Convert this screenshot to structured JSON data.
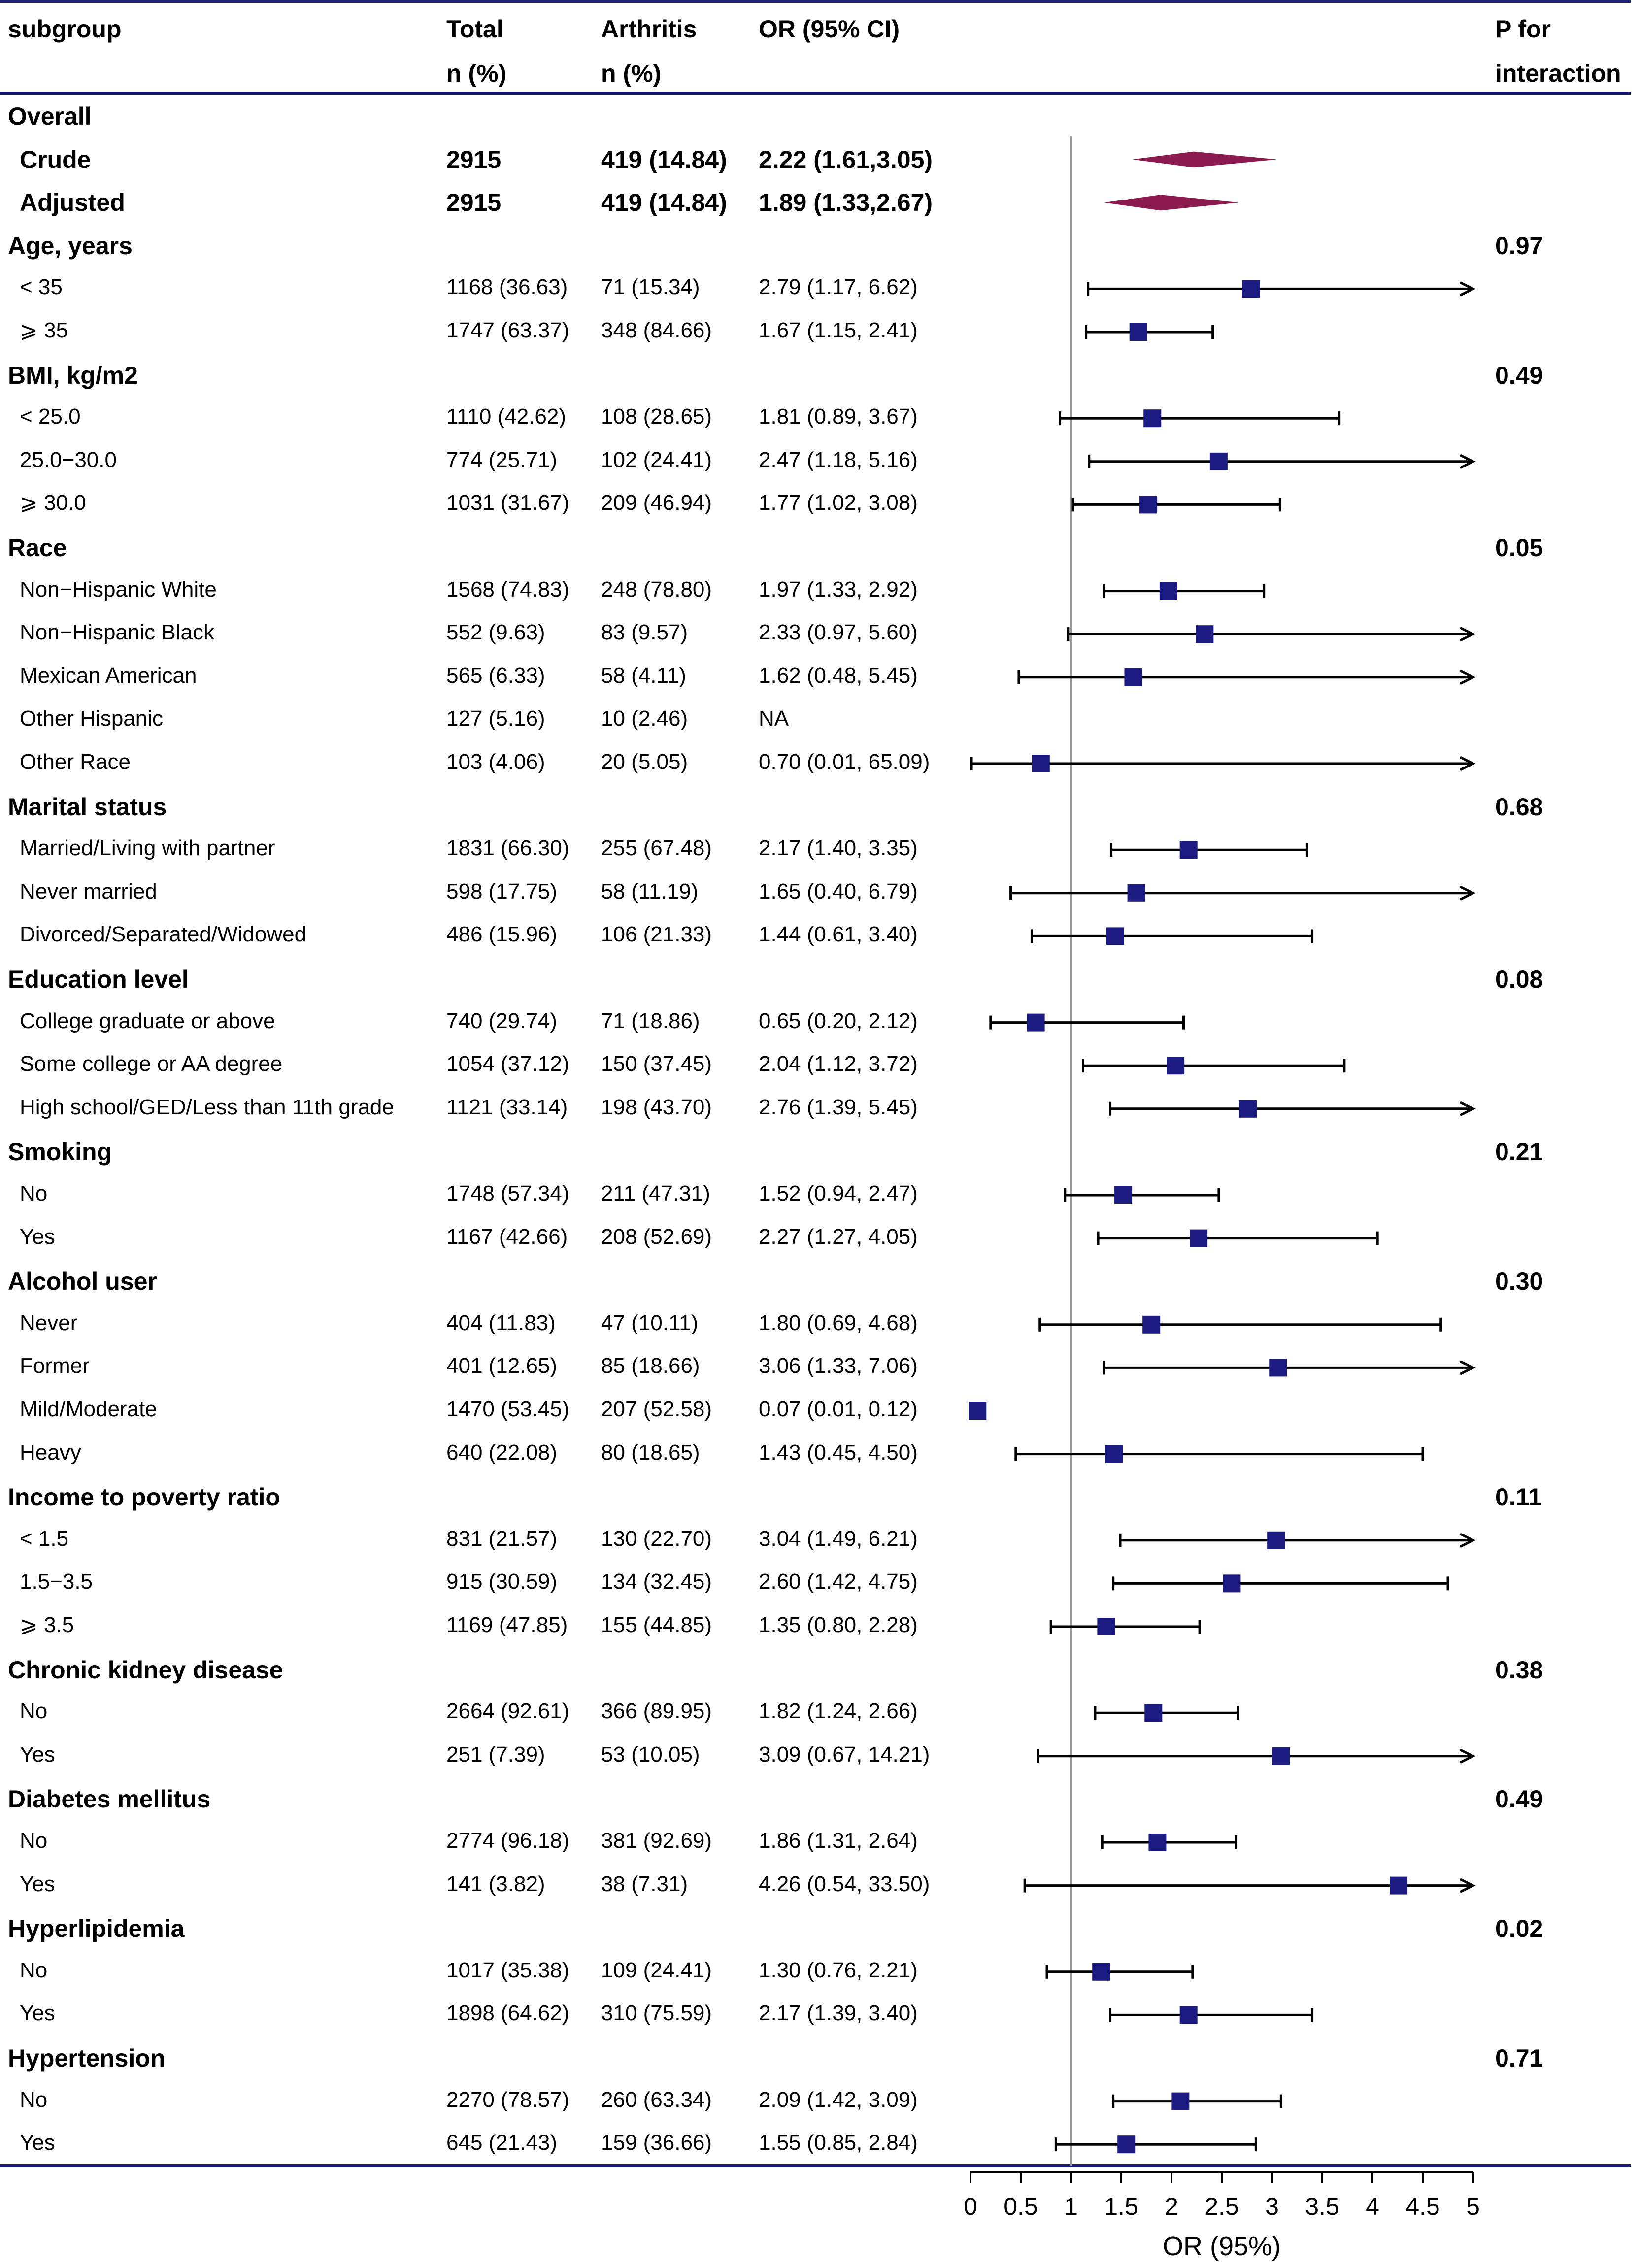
{
  "header": {
    "subgroup": "subgroup",
    "total": "Total",
    "total_unit": "n (%)",
    "arthritis": "Arthritis",
    "arthritis_unit": "n (%)",
    "or_ci": "OR (95% CI)",
    "p_interaction_1": "P for",
    "p_interaction_2": "interaction"
  },
  "colors": {
    "rule": "#1a1a6e",
    "marker": "#1a1a80",
    "diamond": "#8b1a4f",
    "refline": "#999999"
  },
  "chart_data": {
    "type": "forest",
    "title": "",
    "xlabel": "OR (95%)",
    "xlim": [
      0,
      5
    ],
    "xticks": [
      0,
      0.5,
      1,
      1.5,
      2,
      2.5,
      3,
      3.5,
      4,
      4.5,
      5
    ],
    "xtick_labels": [
      "0",
      "0.5",
      "1",
      "1.5",
      "2",
      "2.5",
      "3",
      "3.5",
      "4",
      "4.5",
      "5"
    ],
    "reference_line": 1,
    "rows": [
      {
        "kind": "section",
        "label": "Overall",
        "p": ""
      },
      {
        "kind": "overall",
        "label": "Crude",
        "total": "2915",
        "arthritis": "419 (14.84)",
        "or_text": "2.22 (1.61,3.05)",
        "or": 2.22,
        "lo": 1.61,
        "hi": 3.05
      },
      {
        "kind": "overall",
        "label": "Adjusted",
        "total": "2915",
        "arthritis": "419 (14.84)",
        "or_text": "1.89 (1.33,2.67)",
        "or": 1.89,
        "lo": 1.33,
        "hi": 2.67
      },
      {
        "kind": "section",
        "label": "Age, years",
        "p": "0.97"
      },
      {
        "kind": "sub",
        "label": "< 35",
        "total": "1168 (36.63)",
        "arthritis": "71 (15.34)",
        "or_text": "2.79 (1.17, 6.62)",
        "or": 2.79,
        "lo": 1.17,
        "hi": 6.62
      },
      {
        "kind": "sub",
        "label": "⩾ 35",
        "total": "1747 (63.37)",
        "arthritis": "348 (84.66)",
        "or_text": "1.67 (1.15, 2.41)",
        "or": 1.67,
        "lo": 1.15,
        "hi": 2.41
      },
      {
        "kind": "section",
        "label": "BMI, kg/m2",
        "p": "0.49"
      },
      {
        "kind": "sub",
        "label": "< 25.0",
        "total": "1110 (42.62)",
        "arthritis": "108 (28.65)",
        "or_text": "1.81 (0.89, 3.67)",
        "or": 1.81,
        "lo": 0.89,
        "hi": 3.67
      },
      {
        "kind": "sub",
        "label": "25.0−30.0",
        "total": "774 (25.71)",
        "arthritis": "102 (24.41)",
        "or_text": "2.47 (1.18, 5.16)",
        "or": 2.47,
        "lo": 1.18,
        "hi": 5.16
      },
      {
        "kind": "sub",
        "label": "⩾ 30.0",
        "total": "1031 (31.67)",
        "arthritis": "209 (46.94)",
        "or_text": "1.77 (1.02, 3.08)",
        "or": 1.77,
        "lo": 1.02,
        "hi": 3.08
      },
      {
        "kind": "section",
        "label": "Race",
        "p": "0.05"
      },
      {
        "kind": "sub",
        "label": "Non−Hispanic White",
        "total": "1568 (74.83)",
        "arthritis": "248 (78.80)",
        "or_text": "1.97 (1.33, 2.92)",
        "or": 1.97,
        "lo": 1.33,
        "hi": 2.92
      },
      {
        "kind": "sub",
        "label": "Non−Hispanic Black",
        "total": "552 (9.63)",
        "arthritis": "83 (9.57)",
        "or_text": "2.33 (0.97, 5.60)",
        "or": 2.33,
        "lo": 0.97,
        "hi": 5.6
      },
      {
        "kind": "sub",
        "label": "Mexican American",
        "total": "565 (6.33)",
        "arthritis": "58 (4.11)",
        "or_text": "1.62 (0.48, 5.45)",
        "or": 1.62,
        "lo": 0.48,
        "hi": 5.45
      },
      {
        "kind": "sub",
        "label": "Other Hispanic",
        "total": "127 (5.16)",
        "arthritis": "10 (2.46)",
        "or_text": "NA",
        "or": null,
        "lo": null,
        "hi": null
      },
      {
        "kind": "sub",
        "label": "Other Race",
        "total": "103 (4.06)",
        "arthritis": "20 (5.05)",
        "or_text": "0.70 (0.01, 65.09)",
        "or": 0.7,
        "lo": 0.01,
        "hi": 65.09
      },
      {
        "kind": "section",
        "label": "Marital status",
        "p": "0.68"
      },
      {
        "kind": "sub",
        "label": "Married/Living with partner",
        "total": "1831 (66.30)",
        "arthritis": "255 (67.48)",
        "or_text": "2.17 (1.40, 3.35)",
        "or": 2.17,
        "lo": 1.4,
        "hi": 3.35
      },
      {
        "kind": "sub",
        "label": "Never married",
        "total": "598 (17.75)",
        "arthritis": "58 (11.19)",
        "or_text": "1.65 (0.40, 6.79)",
        "or": 1.65,
        "lo": 0.4,
        "hi": 6.79
      },
      {
        "kind": "sub",
        "label": "Divorced/Separated/Widowed",
        "total": "486 (15.96)",
        "arthritis": "106 (21.33)",
        "or_text": "1.44 (0.61, 3.40)",
        "or": 1.44,
        "lo": 0.61,
        "hi": 3.4
      },
      {
        "kind": "section",
        "label": "Education level",
        "p": "0.08"
      },
      {
        "kind": "sub",
        "label": "College graduate or above",
        "total": "740 (29.74)",
        "arthritis": "71 (18.86)",
        "or_text": "0.65 (0.20, 2.12)",
        "or": 0.65,
        "lo": 0.2,
        "hi": 2.12
      },
      {
        "kind": "sub",
        "label": "Some college or AA degree",
        "total": "1054 (37.12)",
        "arthritis": "150 (37.45)",
        "or_text": "2.04 (1.12, 3.72)",
        "or": 2.04,
        "lo": 1.12,
        "hi": 3.72
      },
      {
        "kind": "sub",
        "label": "High school/GED/Less than 11th grade",
        "total": "1121 (33.14)",
        "arthritis": "198 (43.70)",
        "or_text": "2.76 (1.39, 5.45)",
        "or": 2.76,
        "lo": 1.39,
        "hi": 5.45
      },
      {
        "kind": "section",
        "label": "Smoking",
        "p": "0.21"
      },
      {
        "kind": "sub",
        "label": "No",
        "total": "1748 (57.34)",
        "arthritis": "211 (47.31)",
        "or_text": "1.52 (0.94, 2.47)",
        "or": 1.52,
        "lo": 0.94,
        "hi": 2.47
      },
      {
        "kind": "sub",
        "label": "Yes",
        "total": "1167 (42.66)",
        "arthritis": "208 (52.69)",
        "or_text": "2.27 (1.27, 4.05)",
        "or": 2.27,
        "lo": 1.27,
        "hi": 4.05
      },
      {
        "kind": "section",
        "label": "Alcohol user",
        "p": "0.30"
      },
      {
        "kind": "sub",
        "label": "Never",
        "total": "404 (11.83)",
        "arthritis": "47 (10.11)",
        "or_text": "1.80 (0.69, 4.68)",
        "or": 1.8,
        "lo": 0.69,
        "hi": 4.68
      },
      {
        "kind": "sub",
        "label": "Former",
        "total": "401 (12.65)",
        "arthritis": "85 (18.66)",
        "or_text": "3.06 (1.33, 7.06)",
        "or": 3.06,
        "lo": 1.33,
        "hi": 7.06
      },
      {
        "kind": "sub",
        "label": "Mild/Moderate",
        "total": "1470 (53.45)",
        "arthritis": "207 (52.58)",
        "or_text": "0.07 (0.01, 0.12)",
        "or": 0.07,
        "lo": 0.01,
        "hi": 0.12
      },
      {
        "kind": "sub",
        "label": "Heavy",
        "total": "640 (22.08)",
        "arthritis": "80 (18.65)",
        "or_text": "1.43 (0.45, 4.50)",
        "or": 1.43,
        "lo": 0.45,
        "hi": 4.5
      },
      {
        "kind": "section",
        "label": "Income to poverty ratio",
        "p": "0.11"
      },
      {
        "kind": "sub",
        "label": "<  1.5",
        "total": "831 (21.57)",
        "arthritis": "130 (22.70)",
        "or_text": "3.04 (1.49, 6.21)",
        "or": 3.04,
        "lo": 1.49,
        "hi": 6.21
      },
      {
        "kind": "sub",
        "label": "1.5−3.5",
        "total": "915 (30.59)",
        "arthritis": "134 (32.45)",
        "or_text": "2.60 (1.42, 4.75)",
        "or": 2.6,
        "lo": 1.42,
        "hi": 4.75
      },
      {
        "kind": "sub",
        "label": "⩾ 3.5",
        "total": "1169 (47.85)",
        "arthritis": "155 (44.85)",
        "or_text": "1.35 (0.80, 2.28)",
        "or": 1.35,
        "lo": 0.8,
        "hi": 2.28
      },
      {
        "kind": "section",
        "label": "Chronic kidney disease",
        "p": "0.38"
      },
      {
        "kind": "sub",
        "label": "No",
        "total": "2664 (92.61)",
        "arthritis": "366 (89.95)",
        "or_text": "1.82 (1.24, 2.66)",
        "or": 1.82,
        "lo": 1.24,
        "hi": 2.66
      },
      {
        "kind": "sub",
        "label": "Yes",
        "total": "251 (7.39)",
        "arthritis": "53 (10.05)",
        "or_text": "3.09 (0.67, 14.21)",
        "or": 3.09,
        "lo": 0.67,
        "hi": 14.21
      },
      {
        "kind": "section",
        "label": "Diabetes mellitus",
        "p": "0.49"
      },
      {
        "kind": "sub",
        "label": "No",
        "total": "2774 (96.18)",
        "arthritis": "381 (92.69)",
        "or_text": "1.86 (1.31, 2.64)",
        "or": 1.86,
        "lo": 1.31,
        "hi": 2.64
      },
      {
        "kind": "sub",
        "label": "Yes",
        "total": "141 (3.82)",
        "arthritis": "38 (7.31)",
        "or_text": "4.26 (0.54, 33.50)",
        "or": 4.26,
        "lo": 0.54,
        "hi": 33.5
      },
      {
        "kind": "section",
        "label": "Hyperlipidemia",
        "p": "0.02"
      },
      {
        "kind": "sub",
        "label": "No",
        "total": "1017 (35.38)",
        "arthritis": "109 (24.41)",
        "or_text": "1.30 (0.76, 2.21)",
        "or": 1.3,
        "lo": 0.76,
        "hi": 2.21
      },
      {
        "kind": "sub",
        "label": "Yes",
        "total": "1898 (64.62)",
        "arthritis": "310 (75.59)",
        "or_text": "2.17 (1.39, 3.40)",
        "or": 2.17,
        "lo": 1.39,
        "hi": 3.4
      },
      {
        "kind": "section",
        "label": "Hypertension",
        "p": "0.71"
      },
      {
        "kind": "sub",
        "label": "No",
        "total": "2270 (78.57)",
        "arthritis": "260 (63.34)",
        "or_text": "2.09 (1.42, 3.09)",
        "or": 2.09,
        "lo": 1.42,
        "hi": 3.09
      },
      {
        "kind": "sub",
        "label": "Yes",
        "total": "645 (21.43)",
        "arthritis": "159 (36.66)",
        "or_text": "1.55 (0.85, 2.84)",
        "or": 1.55,
        "lo": 0.85,
        "hi": 2.84
      }
    ]
  }
}
